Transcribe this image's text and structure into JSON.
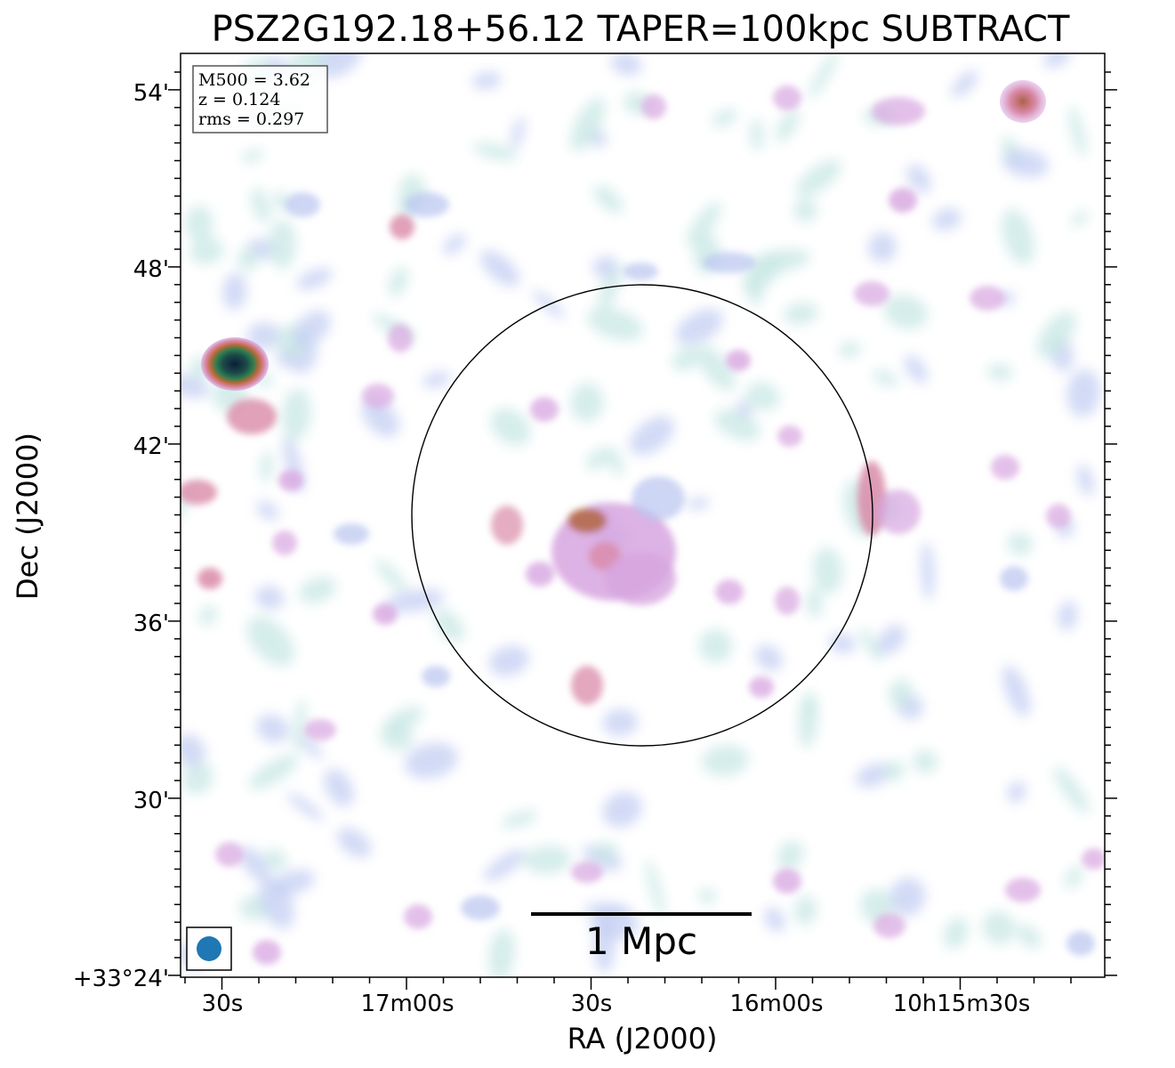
{
  "title": "PSZ2G192.18+56.12 TAPER=100kpc SUBTRACT",
  "axes": {
    "xlabel": "RA (J2000)",
    "ylabel": "Dec (J2000)",
    "x_ticks": [
      "30s",
      "17m00s",
      "30s",
      "16m00s",
      "10h15m30s"
    ],
    "y_ticks": [
      "54'",
      "48'",
      "42'",
      "36'",
      "30'",
      "+33°24'"
    ]
  },
  "info_box": {
    "lines": [
      "M500 = 3.62",
      "z = 0.124",
      "rms = 0.297"
    ]
  },
  "scale_bar": {
    "label": "1 Mpc"
  },
  "colors": {
    "faint": "#bde3df",
    "low": "#b8c5f0",
    "mid": "#d7a5e0",
    "high": "#d98aa8",
    "peak": "#b56a4a",
    "core": "#0b2540",
    "beam": "#1f77b4"
  }
}
